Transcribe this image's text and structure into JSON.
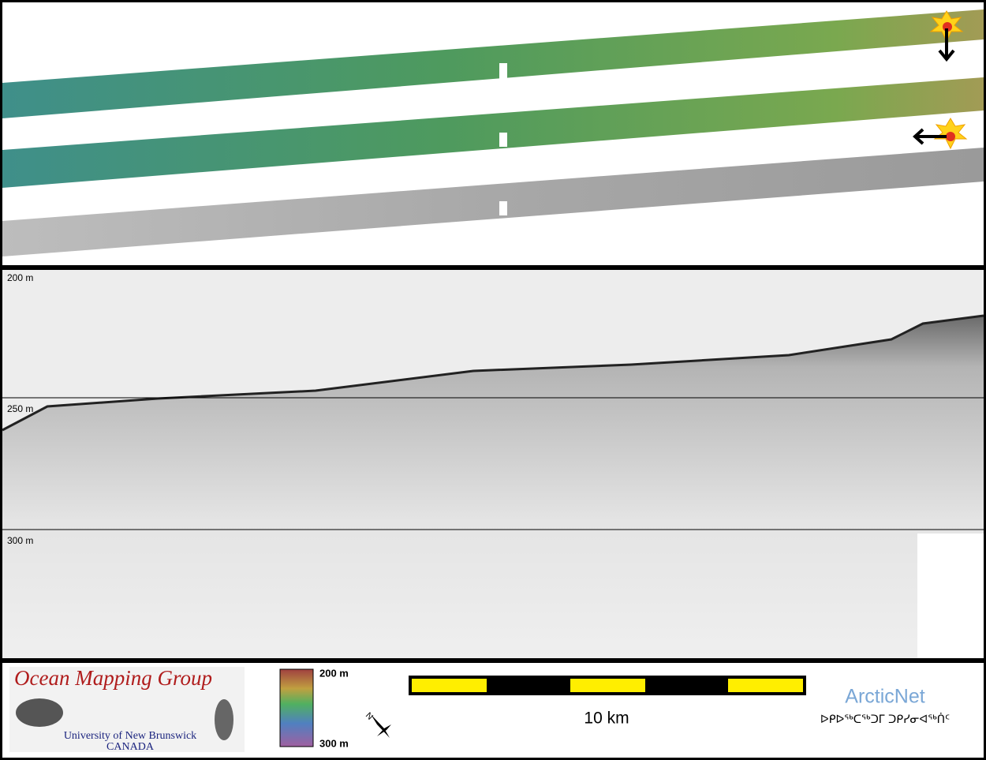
{
  "profile": {
    "depth_labels": [
      "200 m",
      "250 m",
      "300 m"
    ]
  },
  "legend": {
    "logo": {
      "title": "Ocean Mapping Group",
      "university": "University of New Brunswick",
      "country": "CANADA"
    },
    "colorbar": {
      "top_label": "200 m",
      "bottom_label": "300 m"
    },
    "scale_bar": {
      "label": "10 km"
    },
    "partner": {
      "name": "ArcticNet",
      "subtitle": "ᐅᑭᐅᖅᑕᖅᑐᒥ ᑐᑭᓯᓂᐊᖅᑏᑦ"
    }
  }
}
